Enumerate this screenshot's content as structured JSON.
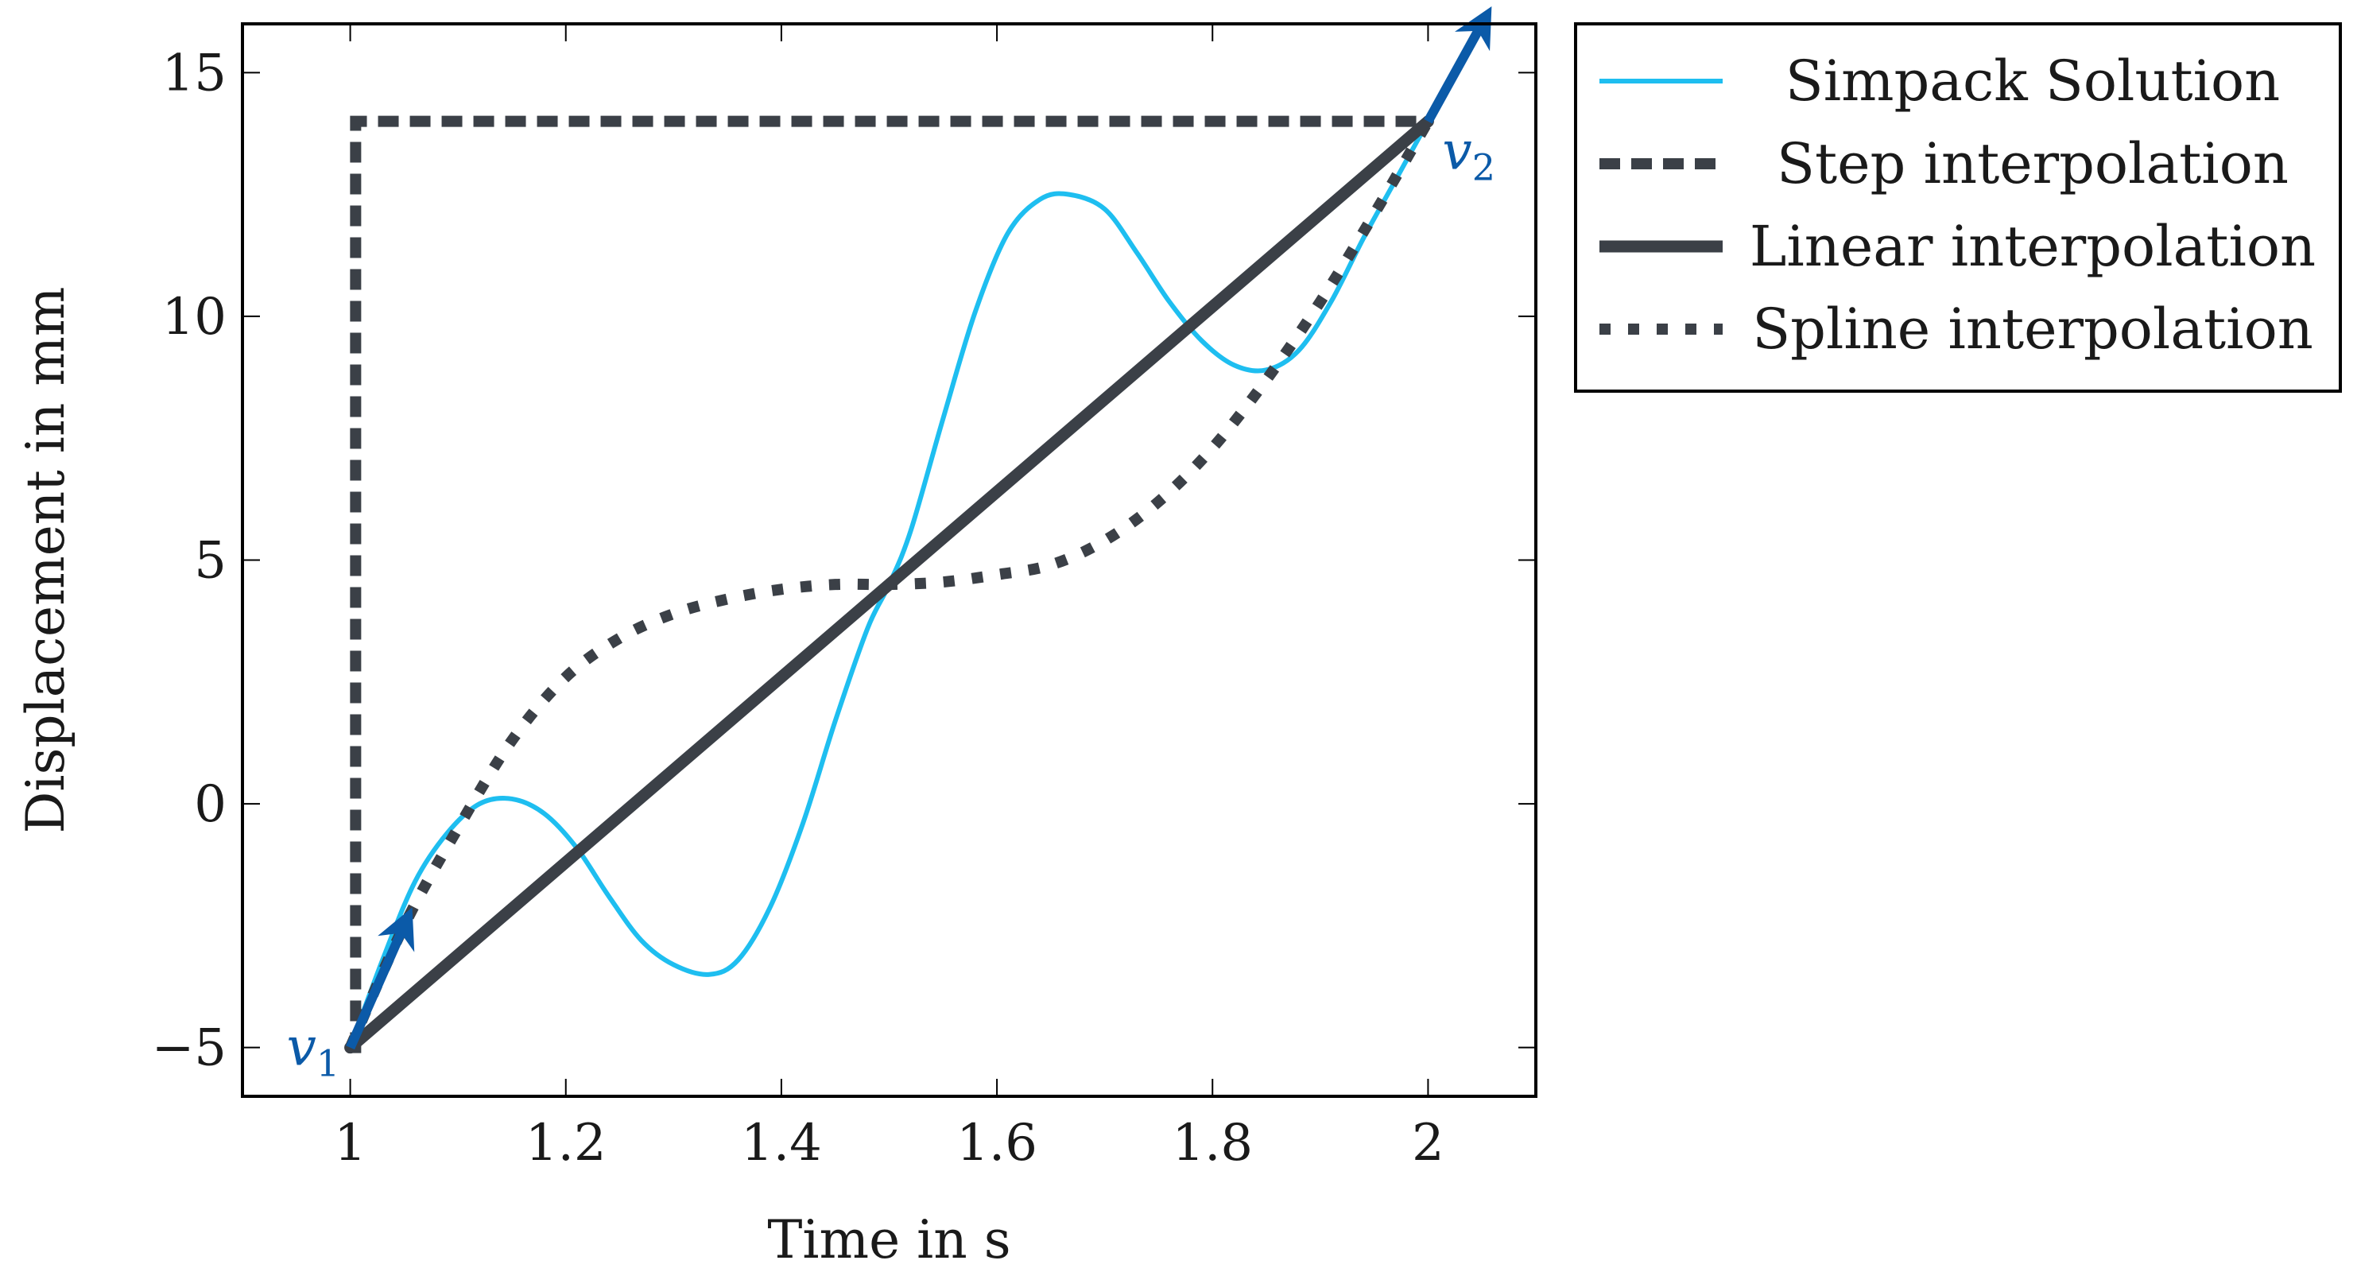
{
  "colors": {
    "simpack": "#1ebef0",
    "interp": "#3b4047",
    "vector": "#0b5aa8",
    "frame": "#000000"
  },
  "chart_data": {
    "type": "line",
    "xlabel": "Time in s",
    "ylabel": "Displacement in mm",
    "xlim": [
      0.9,
      2.1
    ],
    "ylim": [
      -6,
      16
    ],
    "xticks": [
      1,
      1.2,
      1.4,
      1.6,
      1.8,
      2
    ],
    "xtick_labels": [
      "1",
      "1.2",
      "1.4",
      "1.6",
      "1.8",
      "2"
    ],
    "yticks": [
      -5,
      0,
      5,
      10,
      15
    ],
    "ytick_labels": [
      "−5",
      "0",
      "5",
      "10",
      "15"
    ],
    "legend_position": "outside-right-top",
    "series": [
      {
        "name": "Simpack Solution",
        "style": "solid-thin",
        "x": [
          1.0,
          1.03,
          1.06,
          1.09,
          1.12,
          1.15,
          1.18,
          1.21,
          1.24,
          1.27,
          1.3,
          1.333,
          1.36,
          1.39,
          1.42,
          1.45,
          1.48,
          1.5,
          1.52,
          1.55,
          1.58,
          1.61,
          1.64,
          1.667,
          1.7,
          1.73,
          1.76,
          1.79,
          1.82,
          1.85,
          1.88,
          1.91,
          1.94,
          1.97,
          2.0
        ],
        "y": [
          -5.0,
          -3.2,
          -1.6,
          -0.6,
          0.0,
          0.1,
          -0.2,
          -0.9,
          -1.9,
          -2.8,
          -3.3,
          -3.5,
          -3.2,
          -2.1,
          -0.4,
          1.7,
          3.6,
          4.5,
          5.6,
          7.9,
          10.1,
          11.7,
          12.4,
          12.5,
          12.2,
          11.3,
          10.3,
          9.5,
          9.0,
          8.9,
          9.3,
          10.3,
          11.6,
          12.8,
          14.0
        ]
      },
      {
        "name": "Step interpolation",
        "style": "dashed",
        "x": [
          1.0,
          1.005,
          1.005,
          2.0
        ],
        "y": [
          -5.0,
          -5.0,
          14.0,
          14.0
        ]
      },
      {
        "name": "Linear interpolation",
        "style": "solid-thick",
        "x": [
          1.0,
          2.0
        ],
        "y": [
          -5.0,
          14.0
        ]
      },
      {
        "name": "Spline interpolation",
        "style": "dotted",
        "x": [
          1.0,
          1.05,
          1.1,
          1.15,
          1.2,
          1.25,
          1.3,
          1.35,
          1.4,
          1.45,
          1.5,
          1.55,
          1.6,
          1.65,
          1.7,
          1.75,
          1.8,
          1.85,
          1.9,
          1.95,
          2.0
        ],
        "y": [
          -5.0,
          -2.5,
          -0.5,
          1.3,
          2.6,
          3.4,
          3.9,
          4.2,
          4.4,
          4.5,
          4.5,
          4.55,
          4.7,
          4.9,
          5.4,
          6.2,
          7.3,
          8.7,
          10.3,
          12.1,
          14.0
        ]
      }
    ],
    "annotations": [
      {
        "text": "v",
        "sub": "1",
        "x": 1.0,
        "y": -5.0,
        "anchor": "left"
      },
      {
        "text": "v",
        "sub": "2",
        "x": 2.0,
        "y": 14.0,
        "anchor": "right"
      }
    ],
    "vectors": [
      {
        "name": "v1",
        "x0": 1.0,
        "y0": -5.0,
        "x1": 1.05,
        "y1": -2.5
      },
      {
        "name": "v2",
        "x0": 2.0,
        "y0": 14.0,
        "x1": 2.05,
        "y1": 16.0
      }
    ]
  }
}
